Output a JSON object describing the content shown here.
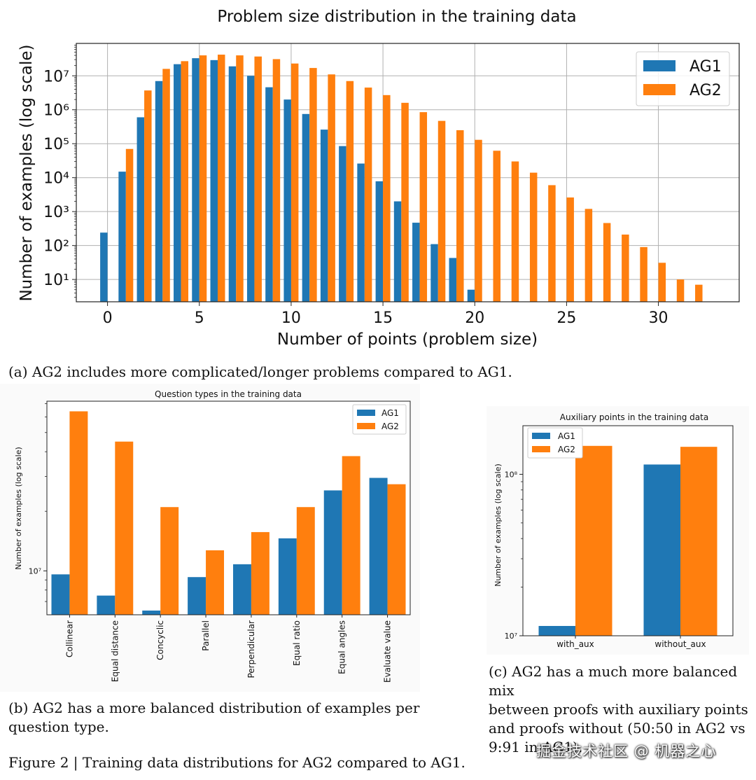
{
  "colors": {
    "AG1": "#1f77b4",
    "AG2": "#ff7f0e",
    "grid": "#b0b0b0",
    "panel_bg": "#fafafa"
  },
  "chart_data": [
    {
      "id": "a",
      "type": "bar",
      "title": "Problem size distribution in the training data",
      "xlabel": "Number of points (problem size)",
      "ylabel": "Number of examples (log scale)",
      "yscale": "log",
      "x_ticks": [
        0,
        5,
        10,
        15,
        20,
        25,
        30
      ],
      "y_ticks": [
        {
          "value": 10,
          "label": "10¹"
        },
        {
          "value": 100,
          "label": "10²"
        },
        {
          "value": 1000,
          "label": "10³"
        },
        {
          "value": 10000,
          "label": "10⁴"
        },
        {
          "value": 100000,
          "label": "10⁵"
        },
        {
          "value": 1000000,
          "label": "10⁶"
        },
        {
          "value": 10000000,
          "label": "10⁷"
        }
      ],
      "xlim": [
        -1.7,
        34.4
      ],
      "ylim": [
        2.2,
        90000000
      ],
      "grid": true,
      "legend_position": "top-right",
      "series": [
        {
          "name": "AG1",
          "x": [
            0,
            1,
            2,
            3,
            4,
            5,
            6,
            7,
            8,
            9,
            10,
            11,
            12,
            13,
            14,
            15,
            16,
            17,
            18,
            19,
            20
          ],
          "values": [
            240,
            15000,
            600000,
            7000000,
            22000000,
            33000000,
            29000000,
            19000000,
            10000000,
            4600000,
            2000000,
            750000,
            260000,
            85000,
            26000,
            7800,
            2000,
            470,
            110,
            43,
            5
          ]
        },
        {
          "name": "AG2",
          "x": [
            1,
            2,
            3,
            4,
            5,
            6,
            7,
            8,
            9,
            10,
            11,
            12,
            13,
            14,
            15,
            16,
            17,
            18,
            19,
            20,
            21,
            22,
            23,
            24,
            25,
            26,
            27,
            28,
            29,
            30,
            31,
            32
          ],
          "values": [
            70000,
            3700000,
            16000000,
            27000000,
            40000000,
            42000000,
            40000000,
            37000000,
            31000000,
            23000000,
            17000000,
            11000000,
            7000000,
            4500000,
            2700000,
            1600000,
            850000,
            470000,
            250000,
            130000,
            62000,
            30000,
            14000,
            6000,
            2600,
            1200,
            460,
            210,
            90,
            31,
            10,
            7
          ]
        }
      ]
    },
    {
      "id": "b",
      "type": "bar",
      "title": "Question types in the training data",
      "xlabel": "",
      "ylabel": "Number of examples (log scale)",
      "yscale": "log",
      "categories": [
        "Collinear",
        "Equal distance",
        "Concyclic",
        "Parallel",
        "Perpendicular",
        "Equal ratio",
        "Equal angles",
        "Evaluate value"
      ],
      "y_ticks": [
        {
          "value": 10000000,
          "label": "10⁷"
        }
      ],
      "ylim": [
        6000000,
        72000000
      ],
      "grid": false,
      "legend_position": "top-right",
      "series": [
        {
          "name": "AG1",
          "values": [
            9600000,
            7500000,
            6300000,
            9300000,
            10800000,
            14600000,
            25500000,
            29500000
          ]
        },
        {
          "name": "AG2",
          "values": [
            64000000,
            45000000,
            21000000,
            12700000,
            15700000,
            21000000,
            38000000,
            27400000
          ]
        }
      ]
    },
    {
      "id": "c",
      "type": "bar",
      "title": "Auxiliary points in the training data",
      "xlabel": "",
      "ylabel": "Number of examples (log scale)",
      "yscale": "log",
      "categories": [
        "with_aux",
        "without_aux"
      ],
      "y_ticks": [
        {
          "value": 10000000,
          "label": "10⁷"
        },
        {
          "value": 100000000,
          "label": "10⁸"
        }
      ],
      "ylim": [
        10000000,
        200000000
      ],
      "grid": false,
      "legend_position": "top-left",
      "series": [
        {
          "name": "AG1",
          "values": [
            11500000,
            115000000
          ]
        },
        {
          "name": "AG2",
          "values": [
            150000000,
            148000000
          ]
        }
      ]
    }
  ],
  "captions": {
    "a": "(a) AG2 includes more complicated/longer problems compared to AG1.",
    "b_lines": [
      "(b) AG2 has a more balanced distribution of examples per",
      "question type."
    ],
    "c_lines": [
      "(c) AG2 has a much more balanced mix",
      "between proofs with auxiliary points",
      "and proofs without (50:50 in AG2 vs",
      "9:91 in AG1)."
    ],
    "figure": "Figure 2 | Training data distributions for AG2 compared to AG1."
  },
  "watermark": "掘金技术社区 @ 机器之心"
}
